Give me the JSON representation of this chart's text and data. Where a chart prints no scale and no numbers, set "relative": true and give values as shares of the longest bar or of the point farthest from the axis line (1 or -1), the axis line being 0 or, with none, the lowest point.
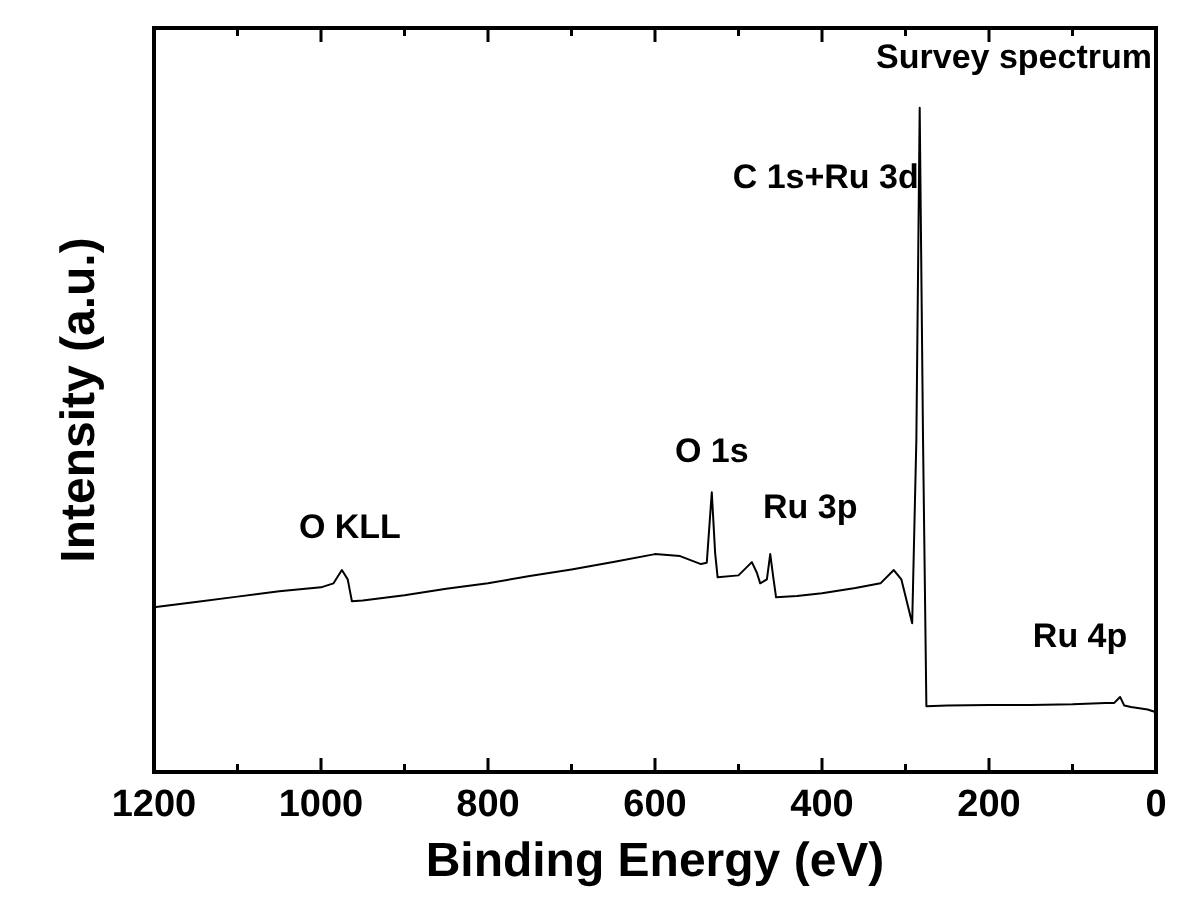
{
  "chart_data": {
    "type": "line",
    "title": "Survey spectrum",
    "xlabel": "Binding Energy (eV)",
    "ylabel": "Intensity (a.u.)",
    "relative": true,
    "tick_labels": "x",
    "grid": false,
    "marker": "none",
    "line_style": "solid",
    "xlim": [
      1200,
      0
    ],
    "xticks": [
      1200,
      {
        "value": 1100,
        "label": null
      },
      1000,
      {
        "value": 900,
        "label": null
      },
      800,
      {
        "value": 700,
        "label": null
      },
      600,
      {
        "value": 500,
        "label": null
      },
      400,
      {
        "value": 300,
        "label": null
      },
      200,
      {
        "value": 100,
        "label": null
      },
      0
    ],
    "series": [
      {
        "color": "#000000",
        "x": [
          1200,
          1150,
          1100,
          1050,
          1000,
          985,
          975,
          968,
          963,
          950,
          900,
          850,
          800,
          750,
          700,
          650,
          600,
          570,
          545,
          538,
          532,
          528,
          525,
          500,
          484,
          478,
          474,
          466,
          462,
          458,
          455,
          430,
          400,
          360,
          330,
          314,
          305,
          292,
          287,
          283,
          279,
          275,
          250,
          200,
          150,
          100,
          60,
          50,
          43,
          38,
          30,
          20,
          10,
          0
        ],
        "values": [
          0.248,
          0.256,
          0.264,
          0.272,
          0.278,
          0.284,
          0.304,
          0.29,
          0.257,
          0.258,
          0.266,
          0.276,
          0.284,
          0.295,
          0.305,
          0.316,
          0.328,
          0.325,
          0.313,
          0.315,
          0.421,
          0.33,
          0.293,
          0.296,
          0.316,
          0.3,
          0.284,
          0.29,
          0.328,
          0.29,
          0.263,
          0.265,
          0.269,
          0.277,
          0.284,
          0.304,
          0.29,
          0.224,
          0.5,
          1.0,
          0.5,
          0.099,
          0.1,
          0.101,
          0.101,
          0.102,
          0.104,
          0.104,
          0.113,
          0.1,
          0.098,
          0.096,
          0.094,
          0.09
        ]
      }
    ],
    "annotations": [
      {
        "text": "O KLL",
        "x": 975,
        "y": 0.304
      },
      {
        "text": "O 1s",
        "x": 532,
        "y": 0.421
      },
      {
        "text": "Ru 3p",
        "x": 462,
        "y": 0.328
      },
      {
        "text": "C 1s+Ru 3d",
        "x": 283,
        "y": 1.0
      },
      {
        "text": "Ru 4p",
        "x": 43,
        "y": 0.113
      }
    ]
  }
}
